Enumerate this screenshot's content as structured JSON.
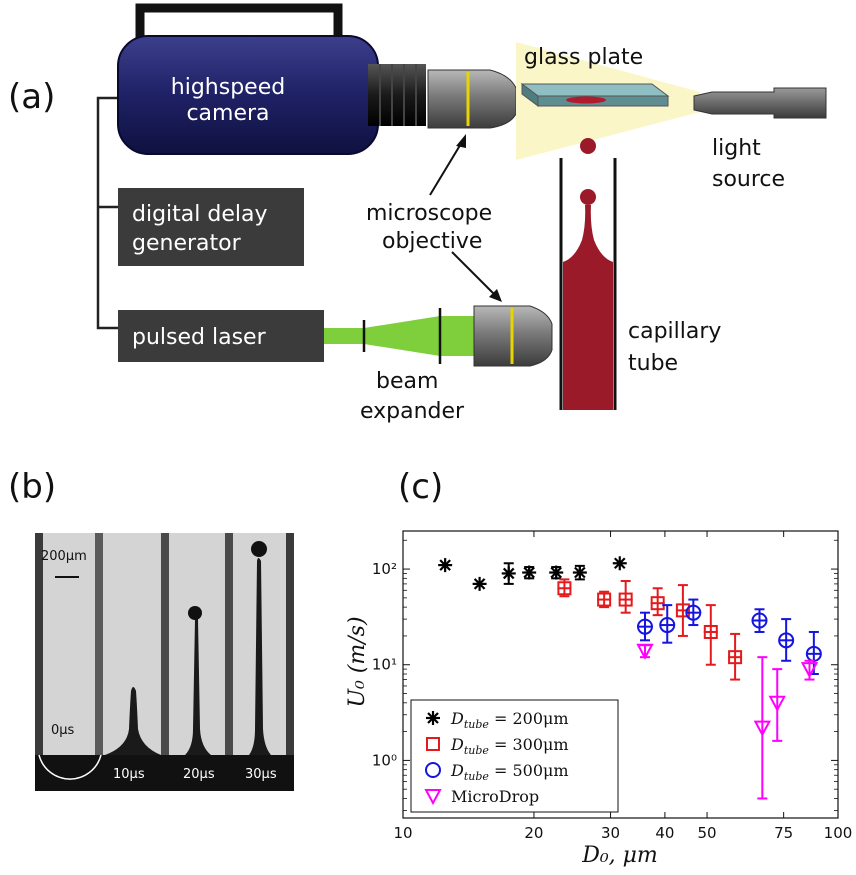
{
  "panel_labels": {
    "a": "(a)",
    "b": "(b)",
    "c": "(c)"
  },
  "setup": {
    "camera_line1": "highspeed",
    "camera_line2": "camera",
    "glass_plate": "glass plate",
    "light_line1": "light",
    "light_line2": "source",
    "delay_line1": "digital delay",
    "delay_line2": "generator",
    "laser": "pulsed laser",
    "objective_line1": "microscope",
    "objective_line2": "objective",
    "capillary_line1": "capillary",
    "capillary_line2": "tube",
    "beam_line1": "beam",
    "beam_line2": "expander"
  },
  "photo": {
    "scale_bar": "200μm",
    "times": [
      "0μs",
      "10μs",
      "20μs",
      "30μs"
    ]
  },
  "chart_data": {
    "type": "scatter",
    "xlabel": "D₀, μm",
    "ylabel": "U₀ (m/s)",
    "xscale": "log",
    "yscale": "log",
    "xlim": [
      10,
      100
    ],
    "ylim": [
      0.25,
      250
    ],
    "xticks": [
      "10",
      "20",
      "30",
      "40",
      "50",
      "75",
      "100"
    ],
    "xtick_values": [
      10,
      20,
      30,
      40,
      50,
      75,
      100
    ],
    "yticks": [
      "10⁰",
      "10¹",
      "10²"
    ],
    "ytick_values": [
      1,
      10,
      100
    ],
    "legend_position": "bottom-left",
    "series": [
      {
        "name": "D_tube = 200μm",
        "marker": "asterisk",
        "color": "#000000",
        "points": [
          {
            "x": 12.5,
            "y": 110,
            "lo": 110,
            "hi": 110
          },
          {
            "x": 15,
            "y": 70,
            "lo": 70,
            "hi": 70
          },
          {
            "x": 17.5,
            "y": 90,
            "lo": 70,
            "hi": 115
          },
          {
            "x": 19.5,
            "y": 92,
            "lo": 80,
            "hi": 105
          },
          {
            "x": 22.5,
            "y": 92,
            "lo": 80,
            "hi": 105
          },
          {
            "x": 25.5,
            "y": 92,
            "lo": 78,
            "hi": 108
          },
          {
            "x": 31.5,
            "y": 115,
            "lo": 115,
            "hi": 115
          }
        ]
      },
      {
        "name": "D_tube = 300μm",
        "marker": "square",
        "color": "#e41a1c",
        "points": [
          {
            "x": 23.5,
            "y": 63,
            "lo": 52,
            "hi": 78
          },
          {
            "x": 29,
            "y": 48,
            "lo": 40,
            "hi": 58
          },
          {
            "x": 32.5,
            "y": 48,
            "lo": 35,
            "hi": 75
          },
          {
            "x": 38.5,
            "y": 44,
            "lo": 33,
            "hi": 63
          },
          {
            "x": 44,
            "y": 37,
            "lo": 20,
            "hi": 68
          },
          {
            "x": 51,
            "y": 22,
            "lo": 10,
            "hi": 42
          },
          {
            "x": 58,
            "y": 12,
            "lo": 7,
            "hi": 21
          }
        ]
      },
      {
        "name": "D_tube = 500μm",
        "marker": "circle",
        "color": "#1515e0",
        "points": [
          {
            "x": 36,
            "y": 25,
            "lo": 18,
            "hi": 35
          },
          {
            "x": 40.5,
            "y": 26,
            "lo": 17,
            "hi": 42
          },
          {
            "x": 46.5,
            "y": 35,
            "lo": 26,
            "hi": 48
          },
          {
            "x": 66,
            "y": 29,
            "lo": 22,
            "hi": 38
          },
          {
            "x": 76,
            "y": 18,
            "lo": 11,
            "hi": 30
          },
          {
            "x": 88,
            "y": 13,
            "lo": 8,
            "hi": 22
          }
        ]
      },
      {
        "name": "MicroDrop",
        "marker": "triangle-down",
        "color": "#ff00ff",
        "points": [
          {
            "x": 36,
            "y": 14,
            "lo": 12,
            "hi": 16
          },
          {
            "x": 67,
            "y": 2.2,
            "lo": 0.4,
            "hi": 12
          },
          {
            "x": 72.5,
            "y": 4,
            "lo": 1.6,
            "hi": 9
          },
          {
            "x": 86,
            "y": 9,
            "lo": 7,
            "hi": 11
          }
        ]
      }
    ],
    "legend": [
      {
        "base": "D",
        "sub": "tube",
        "rest": " = 200μm"
      },
      {
        "base": "D",
        "sub": "tube",
        "rest": " = 300μm"
      },
      {
        "base": "D",
        "sub": "tube",
        "rest": " = 500μm"
      },
      {
        "base": "MicroDrop",
        "sub": "",
        "rest": ""
      }
    ]
  }
}
